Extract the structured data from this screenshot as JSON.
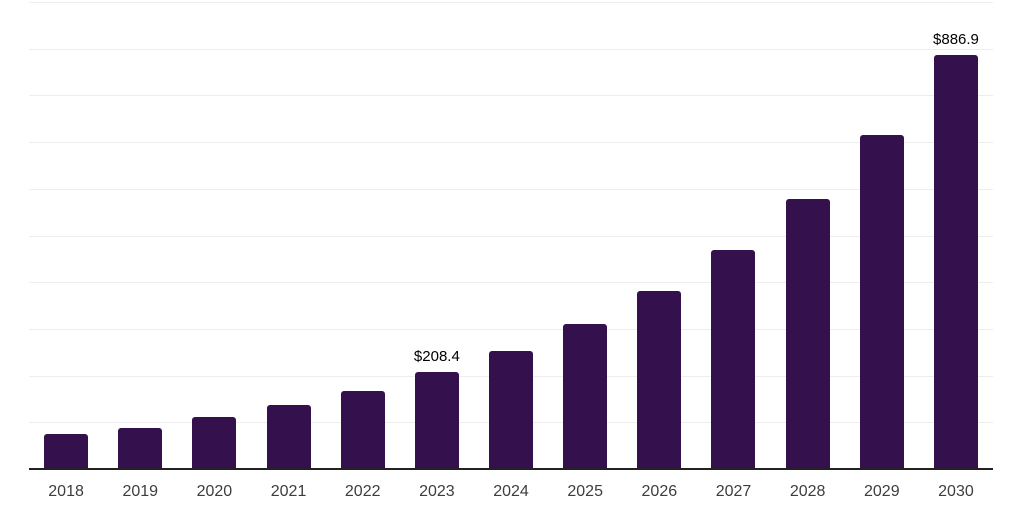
{
  "chart_data": {
    "type": "bar",
    "title": "",
    "xlabel": "",
    "ylabel": "",
    "categories": [
      "2018",
      "2019",
      "2020",
      "2021",
      "2022",
      "2023",
      "2024",
      "2025",
      "2026",
      "2027",
      "2028",
      "2029",
      "2030"
    ],
    "values": [
      75,
      88.5,
      111.5,
      137,
      168,
      208.4,
      252,
      311,
      381,
      469,
      578,
      715,
      886.9
    ],
    "value_labels": [
      "",
      "",
      "",
      "",
      "",
      "$208.4",
      "",
      "",
      "",
      "",
      "",
      "",
      "$886.9"
    ],
    "ylim": [
      0,
      1000
    ],
    "grid": "on",
    "grid_step": 100,
    "legend": "none",
    "colors": {
      "bar": "#34114C",
      "gridline": "#eeeeee",
      "axis_line": "#222222",
      "tick_label": "#3d3d3d",
      "value_label": "#000000",
      "background": "#ffffff"
    }
  }
}
